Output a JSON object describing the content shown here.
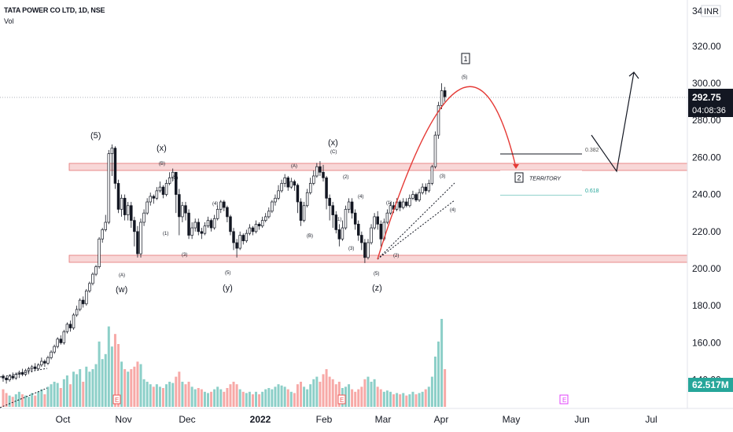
{
  "header": {
    "title": "TATA POWER CO LTD, 1D, NSE",
    "volume_label": "Vol"
  },
  "price_axis": {
    "currency": "INR",
    "top_label": "34",
    "ticks": [
      "320.00",
      "300.00",
      "280.00",
      "260.00",
      "240.00",
      "220.00",
      "200.00",
      "180.00",
      "160.00",
      "140.00"
    ],
    "last_price": "292.75",
    "countdown": "04:08:36",
    "volume_value": "62.517M"
  },
  "time_axis": {
    "labels": [
      "Oct",
      "Nov",
      "Dec",
      "2022",
      "Feb",
      "Mar",
      "Apr",
      "May",
      "Jun",
      "Jul"
    ]
  },
  "annotations": {
    "territory_label": "TERRITORY",
    "territory_box": "2",
    "wave1_box": "1",
    "fib_0382": "0.382",
    "fib_0618": "0.618",
    "earnings_marker": "E",
    "wave_labels_major": [
      "(5)",
      "(x)",
      "(x)",
      "(w)",
      "(y)",
      "(z)"
    ],
    "wave_labels_minor": [
      "(A)",
      "(B)",
      "(C)",
      "(1)",
      "(2)",
      "(3)",
      "(4)",
      "(5)",
      "(A)",
      "(B)",
      "(C)"
    ]
  },
  "colors": {
    "up": "#26a69a",
    "down": "#ef5350",
    "vol_up": "#8ccfc8",
    "vol_down": "#f7a9a7",
    "zone_fill": "#f8d7d7",
    "zone_border": "#e57373",
    "projection_arc": "#e53935",
    "last_price_bg": "#131722",
    "volume_badge_bg": "#26a69a",
    "fib_618": "#26a69a",
    "earnings": "#ef5350",
    "future_earnings": "#e040fb"
  },
  "chart_data": {
    "type": "candlestick",
    "title": "TATA POWER CO LTD, 1D, NSE",
    "series_note": "Daily OHLC candles with volume; values approximated from the price scale",
    "ylim": [
      140,
      340
    ],
    "y_ticks": [
      140,
      160,
      180,
      200,
      220,
      240,
      260,
      280,
      300,
      320
    ],
    "last_price": 292.75,
    "last_volume": "62.517M",
    "x_labels": [
      "Oct",
      "Nov",
      "Dec",
      "2022",
      "Feb",
      "Mar",
      "Apr",
      "May",
      "Jun",
      "Jul"
    ],
    "candles": [
      [
        142,
        141,
        143,
        139,
        14
      ],
      [
        141,
        140,
        142,
        138,
        11
      ],
      [
        140,
        142,
        143,
        139,
        9
      ],
      [
        142,
        141,
        144,
        140,
        8
      ],
      [
        141,
        143,
        144,
        140,
        10
      ],
      [
        143,
        144,
        145,
        141,
        12
      ],
      [
        144,
        143,
        146,
        142,
        10
      ],
      [
        143,
        145,
        146,
        142,
        9
      ],
      [
        145,
        146,
        147,
        143,
        8
      ],
      [
        146,
        147,
        148,
        144,
        11
      ],
      [
        147,
        146,
        149,
        145,
        9
      ],
      [
        146,
        148,
        149,
        145,
        12
      ],
      [
        148,
        150,
        152,
        147,
        14
      ],
      [
        150,
        149,
        151,
        147,
        10
      ],
      [
        149,
        152,
        153,
        148,
        16
      ],
      [
        152,
        155,
        156,
        151,
        18
      ],
      [
        155,
        158,
        159,
        154,
        20
      ],
      [
        158,
        162,
        163,
        157,
        19
      ],
      [
        162,
        160,
        164,
        159,
        15
      ],
      [
        160,
        166,
        167,
        159,
        22
      ],
      [
        166,
        170,
        171,
        165,
        25
      ],
      [
        170,
        168,
        172,
        166,
        18
      ],
      [
        168,
        175,
        176,
        167,
        28
      ],
      [
        175,
        178,
        180,
        174,
        26
      ],
      [
        178,
        183,
        184,
        177,
        30
      ],
      [
        183,
        181,
        185,
        179,
        20
      ],
      [
        181,
        188,
        189,
        180,
        32
      ],
      [
        188,
        192,
        193,
        187,
        28
      ],
      [
        192,
        197,
        198,
        191,
        30
      ],
      [
        197,
        201,
        202,
        196,
        34
      ],
      [
        201,
        216,
        217,
        200,
        52
      ],
      [
        216,
        221,
        222,
        214,
        38
      ],
      [
        221,
        225,
        229,
        220,
        42
      ],
      [
        225,
        262,
        264,
        224,
        64
      ],
      [
        262,
        265,
        267,
        250,
        48
      ],
      [
        265,
        246,
        266,
        243,
        58
      ],
      [
        246,
        232,
        248,
        230,
        50
      ],
      [
        232,
        238,
        240,
        228,
        36
      ],
      [
        238,
        229,
        240,
        226,
        30
      ],
      [
        229,
        234,
        236,
        226,
        28
      ],
      [
        234,
        226,
        236,
        222,
        30
      ],
      [
        226,
        220,
        228,
        212,
        32
      ],
      [
        220,
        208,
        223,
        206,
        36
      ],
      [
        208,
        225,
        227,
        206,
        34
      ],
      [
        225,
        230,
        232,
        223,
        22
      ],
      [
        230,
        236,
        238,
        229,
        20
      ],
      [
        236,
        239,
        241,
        234,
        18
      ],
      [
        239,
        238,
        240,
        235,
        16
      ],
      [
        238,
        242,
        244,
        237,
        18
      ],
      [
        242,
        244,
        247,
        241,
        16
      ],
      [
        244,
        240,
        245,
        238,
        15
      ],
      [
        240,
        246,
        248,
        239,
        18
      ],
      [
        246,
        249,
        252,
        245,
        20
      ],
      [
        249,
        252,
        254,
        247,
        19
      ],
      [
        252,
        240,
        252,
        230,
        24
      ],
      [
        240,
        228,
        243,
        218,
        28
      ],
      [
        228,
        234,
        236,
        225,
        20
      ],
      [
        234,
        230,
        236,
        226,
        18
      ],
      [
        230,
        218,
        232,
        216,
        20
      ],
      [
        218,
        222,
        225,
        216,
        16
      ],
      [
        222,
        225,
        227,
        220,
        14
      ],
      [
        225,
        220,
        227,
        218,
        15
      ],
      [
        220,
        219,
        222,
        216,
        14
      ],
      [
        219,
        223,
        225,
        218,
        12
      ],
      [
        223,
        226,
        228,
        222,
        11
      ],
      [
        226,
        222,
        227,
        220,
        12
      ],
      [
        222,
        227,
        229,
        221,
        14
      ],
      [
        227,
        232,
        234,
        226,
        16
      ],
      [
        232,
        236,
        237,
        230,
        14
      ],
      [
        236,
        233,
        237,
        231,
        12
      ],
      [
        233,
        228,
        234,
        225,
        15
      ],
      [
        228,
        220,
        229,
        218,
        18
      ],
      [
        220,
        214,
        222,
        210,
        20
      ],
      [
        214,
        211,
        216,
        206,
        18
      ],
      [
        211,
        218,
        220,
        210,
        14
      ],
      [
        218,
        215,
        219,
        213,
        12
      ],
      [
        215,
        219,
        221,
        214,
        11
      ],
      [
        219,
        222,
        224,
        218,
        12
      ],
      [
        222,
        220,
        223,
        218,
        10
      ],
      [
        220,
        224,
        226,
        219,
        12
      ],
      [
        224,
        223,
        225,
        221,
        10
      ],
      [
        223,
        226,
        228,
        222,
        12
      ],
      [
        226,
        228,
        230,
        225,
        14
      ],
      [
        228,
        231,
        233,
        227,
        15
      ],
      [
        231,
        236,
        237,
        230,
        14
      ],
      [
        236,
        238,
        240,
        234,
        16
      ],
      [
        238,
        242,
        245,
        237,
        18
      ],
      [
        242,
        246,
        248,
        241,
        17
      ],
      [
        246,
        249,
        251,
        244,
        16
      ],
      [
        249,
        244,
        250,
        242,
        14
      ],
      [
        244,
        247,
        249,
        243,
        12
      ],
      [
        247,
        245,
        248,
        242,
        11
      ],
      [
        245,
        236,
        246,
        230,
        18
      ],
      [
        236,
        226,
        238,
        223,
        20
      ],
      [
        226,
        234,
        236,
        225,
        16
      ],
      [
        234,
        241,
        243,
        233,
        14
      ],
      [
        241,
        246,
        249,
        240,
        18
      ],
      [
        246,
        250,
        253,
        245,
        22
      ],
      [
        250,
        255,
        257,
        249,
        24
      ],
      [
        255,
        252,
        258,
        250,
        20
      ],
      [
        252,
        249,
        256,
        247,
        26
      ],
      [
        249,
        238,
        250,
        232,
        30
      ],
      [
        238,
        234,
        240,
        226,
        24
      ],
      [
        234,
        229,
        236,
        222,
        22
      ],
      [
        229,
        221,
        231,
        219,
        18
      ],
      [
        221,
        216,
        224,
        212,
        20
      ],
      [
        216,
        222,
        226,
        215,
        15
      ],
      [
        222,
        232,
        234,
        221,
        16
      ],
      [
        232,
        236,
        238,
        230,
        18
      ],
      [
        236,
        230,
        238,
        227,
        14
      ],
      [
        230,
        224,
        232,
        221,
        12
      ],
      [
        224,
        218,
        226,
        215,
        14
      ],
      [
        218,
        214,
        220,
        210,
        16
      ],
      [
        214,
        206,
        216,
        203,
        22
      ],
      [
        206,
        214,
        216,
        205,
        24
      ],
      [
        214,
        222,
        224,
        213,
        20
      ],
      [
        222,
        228,
        230,
        221,
        22
      ],
      [
        228,
        224,
        231,
        221,
        16
      ],
      [
        224,
        216,
        226,
        212,
        14
      ],
      [
        216,
        225,
        227,
        215,
        12
      ],
      [
        225,
        230,
        232,
        224,
        13
      ],
      [
        230,
        234,
        236,
        229,
        12
      ],
      [
        234,
        232,
        236,
        230,
        10
      ],
      [
        232,
        236,
        238,
        231,
        11
      ],
      [
        236,
        233,
        237,
        231,
        10
      ],
      [
        233,
        236,
        238,
        232,
        11
      ],
      [
        236,
        234,
        238,
        233,
        9
      ],
      [
        234,
        238,
        240,
        233,
        10
      ],
      [
        238,
        240,
        242,
        237,
        12
      ],
      [
        240,
        237,
        241,
        236,
        10
      ],
      [
        237,
        241,
        243,
        236,
        11
      ],
      [
        241,
        244,
        246,
        240,
        12
      ],
      [
        244,
        242,
        246,
        240,
        14
      ],
      [
        242,
        246,
        248,
        241,
        16
      ],
      [
        246,
        255,
        256,
        245,
        24
      ],
      [
        255,
        272,
        274,
        254,
        40
      ],
      [
        272,
        288,
        290,
        270,
        52
      ],
      [
        288,
        296,
        300,
        286,
        70
      ],
      [
        296,
        292.75,
        298,
        290,
        30
      ]
    ]
  }
}
